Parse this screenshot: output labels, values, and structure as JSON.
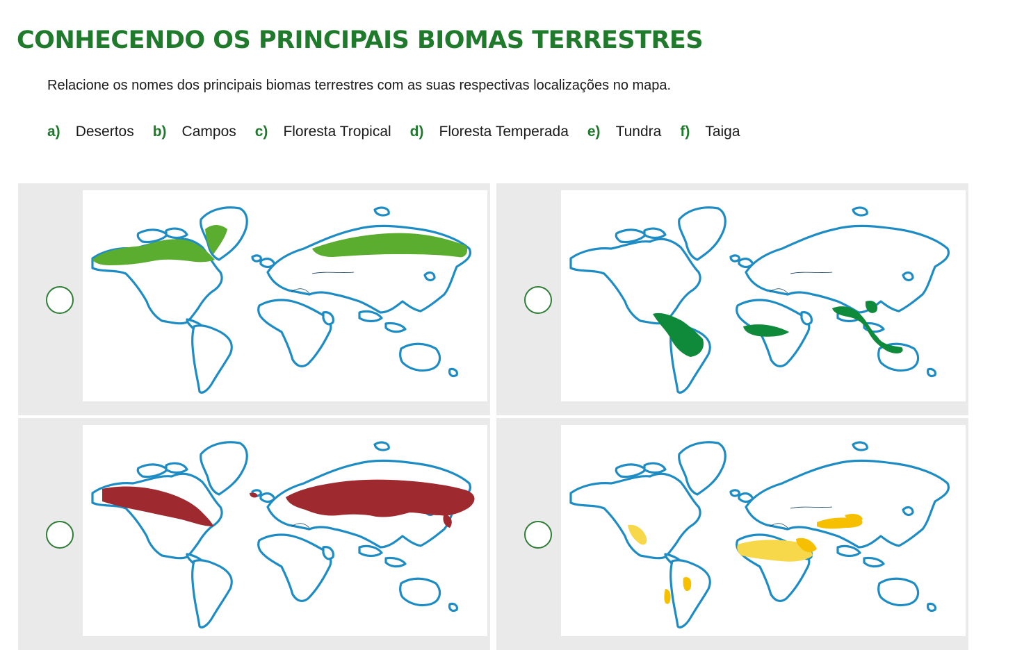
{
  "header": {
    "title": "CONHECENDO OS PRINCIPAIS BIOMAS TERRESTRES",
    "instruction": "Relacione os nomes dos principais biomas terrestres com as suas respectivas localizações no mapa."
  },
  "options": [
    {
      "letter": "a)",
      "label": "Desertos"
    },
    {
      "letter": "b)",
      "label": "Campos"
    },
    {
      "letter": "c)",
      "label": "Floresta Tropical"
    },
    {
      "letter": "d)",
      "label": "Floresta Temperada"
    },
    {
      "letter": "e)",
      "label": "Tundra"
    },
    {
      "letter": "f)",
      "label": "Taiga"
    }
  ],
  "maps": [
    {
      "biome_color": "#5aad2e",
      "answer_input": ""
    },
    {
      "biome_color": "#0f8a3a",
      "answer_input": ""
    },
    {
      "biome_color": "#9e2a2f",
      "answer_input": ""
    },
    {
      "biome_color": "#f6c000",
      "answer_input": ""
    }
  ],
  "colors": {
    "title": "#1f7a2c",
    "accent": "#2f7d36",
    "coast": "#1e8cc4",
    "panel": "#e9eae9"
  }
}
